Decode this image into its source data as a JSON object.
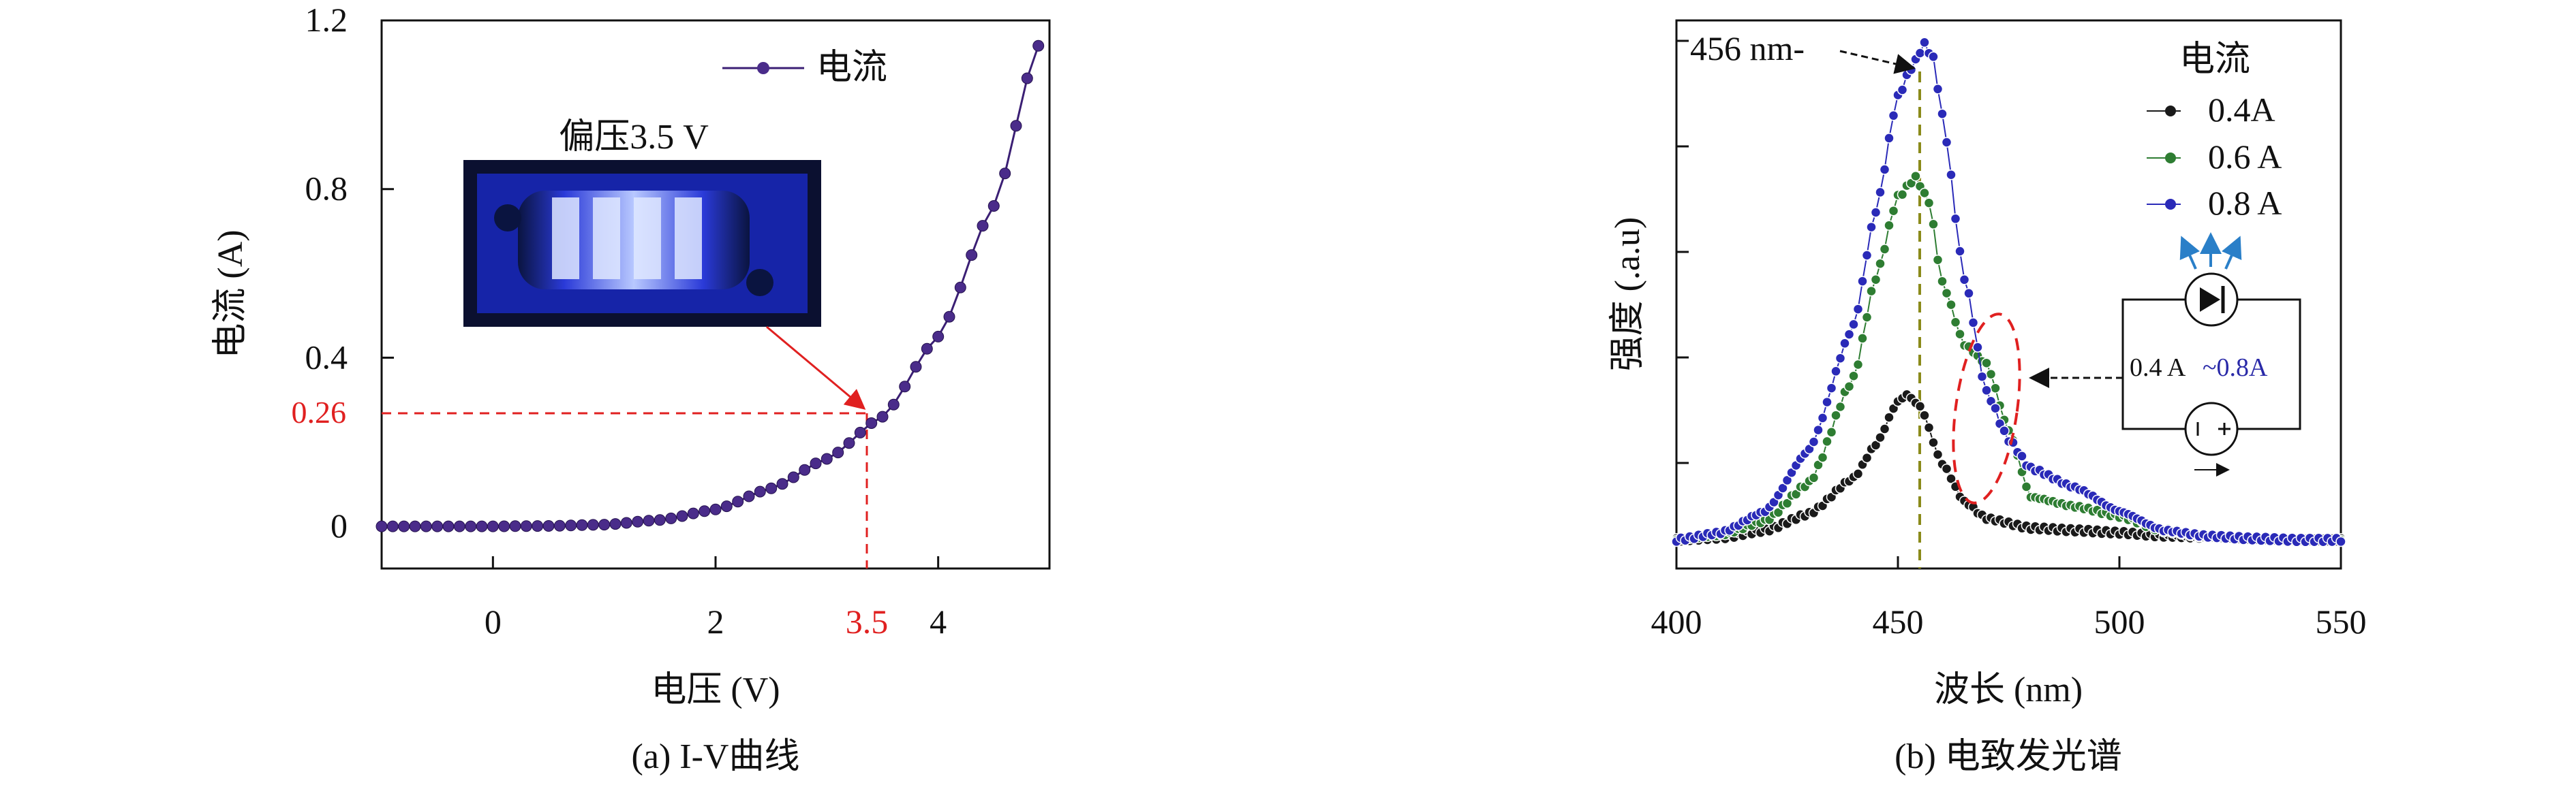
{
  "panel_a": {
    "caption": "(a) I-V曲线",
    "inset_label": "偏压3.5 V",
    "highlight_x_label": "3.5",
    "highlight_y_label": "0.26",
    "colors": {
      "series": "#3b1f74",
      "marker": "#4a2c8a",
      "highlight": "#e02020"
    }
  },
  "panel_b": {
    "caption": "(b) 电致发光谱",
    "peak_label": "456 nm-",
    "legend_title": "电流",
    "circuit_label_a": "0.4 A",
    "circuit_label_b": "~0.8A",
    "colors": {
      "peak_line": "#8a8a1a",
      "annotation": "#e02020",
      "arrows": "#2a7fc8",
      "circuit_blue": "#2a2aa8"
    }
  },
  "chart_data": [
    {
      "type": "line",
      "xlabel": "电压 (V)",
      "ylabel": "电流 (A)",
      "xlim": [
        -1,
        5
      ],
      "ylim": [
        -0.1,
        1.2
      ],
      "xticks": [
        0,
        2,
        4
      ],
      "yticks": [
        0,
        0.4,
        0.8,
        1.2
      ],
      "grid": false,
      "legend": "top-right",
      "series": [
        {
          "name": "电流",
          "x": [
            -1.0,
            -0.5,
            0.0,
            0.5,
            1.0,
            1.5,
            2.0,
            2.5,
            3.0,
            3.5,
            4.0,
            4.5,
            4.9
          ],
          "y": [
            0.0,
            0.0,
            0.0,
            0.001,
            0.004,
            0.015,
            0.04,
            0.09,
            0.16,
            0.26,
            0.45,
            0.76,
            1.14
          ]
        }
      ],
      "annotations": [
        {
          "x": 3.5,
          "y": 0.26
        }
      ]
    },
    {
      "type": "line",
      "xlabel": "波长 (nm)",
      "ylabel": "强度 (.a.u)",
      "xlim": [
        400,
        550
      ],
      "xticks": [
        400,
        450,
        500,
        550
      ],
      "ylim": [
        0,
        1.0
      ],
      "grid": false,
      "legend": "top-right",
      "legend_title": "电流",
      "series": [
        {
          "name": "0.4A",
          "color": "#1a1a1a",
          "x": [
            400,
            410,
            420,
            430,
            440,
            445,
            450,
            452,
            455,
            460,
            465,
            470,
            480,
            490,
            500,
            510,
            520,
            530,
            540,
            550
          ],
          "y": [
            0.01,
            0.015,
            0.03,
            0.065,
            0.14,
            0.21,
            0.3,
            0.315,
            0.29,
            0.17,
            0.09,
            0.055,
            0.035,
            0.03,
            0.025,
            0.018,
            0.014,
            0.011,
            0.01,
            0.01
          ]
        },
        {
          "name": "0.6 A",
          "color": "#2e7d32",
          "x": [
            400,
            410,
            420,
            430,
            440,
            445,
            450,
            454,
            457,
            460,
            465,
            470,
            475,
            480,
            490,
            500,
            510,
            520,
            530,
            540,
            550
          ],
          "y": [
            0.01,
            0.02,
            0.05,
            0.13,
            0.35,
            0.56,
            0.73,
            0.77,
            0.72,
            0.55,
            0.42,
            0.38,
            0.24,
            0.1,
            0.08,
            0.06,
            0.03,
            0.018,
            0.013,
            0.01,
            0.01
          ]
        },
        {
          "name": "0.8 A",
          "color": "#2a2ab8",
          "x": [
            400,
            410,
            420,
            430,
            440,
            445,
            450,
            453,
            456,
            458,
            460,
            465,
            470,
            475,
            480,
            490,
            500,
            510,
            520,
            530,
            540,
            550
          ],
          "y": [
            0.01,
            0.025,
            0.07,
            0.2,
            0.46,
            0.7,
            0.94,
            1.0,
            1.05,
            1.02,
            0.9,
            0.56,
            0.32,
            0.22,
            0.16,
            0.12,
            0.07,
            0.03,
            0.018,
            0.013,
            0.01,
            0.01
          ]
        }
      ]
    }
  ]
}
